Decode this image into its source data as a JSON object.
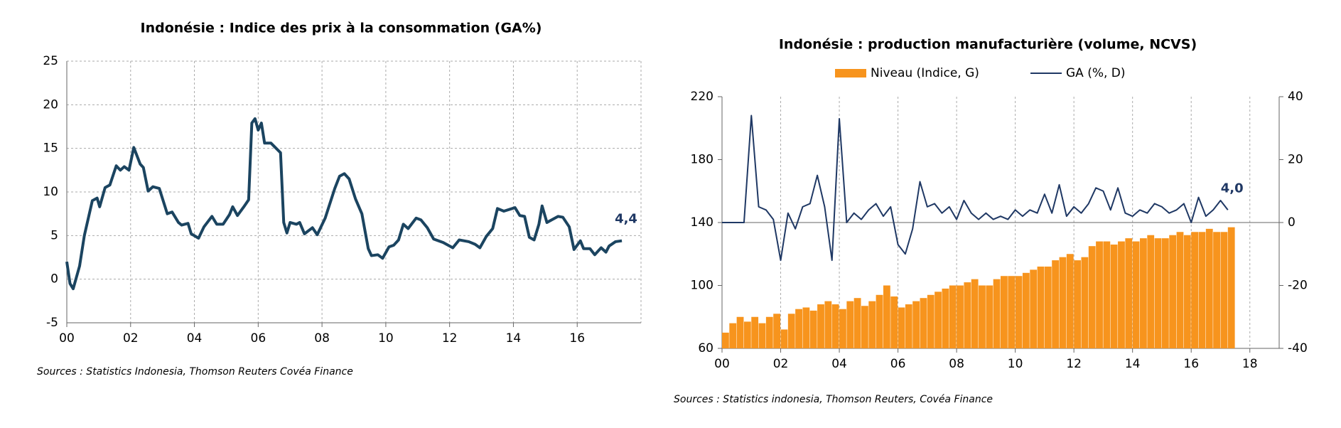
{
  "chart_data": [
    {
      "type": "line",
      "title": "Indonésie : Indice des prix à la consommation (GA%)",
      "source": "Sources :  Statistics Indonesia, Thomson Reuters Covéa Finance",
      "annotations": [
        "4,4"
      ],
      "grid": true,
      "xlim": [
        0,
        18
      ],
      "ylim": [
        -5,
        25
      ],
      "xticks": [
        {
          "value": 0,
          "label": "00"
        },
        {
          "value": 2,
          "label": "02"
        },
        {
          "value": 4,
          "label": "04"
        },
        {
          "value": 6,
          "label": "06"
        },
        {
          "value": 8,
          "label": "08"
        },
        {
          "value": 10,
          "label": "10"
        },
        {
          "value": 12,
          "label": "12"
        },
        {
          "value": 14,
          "label": "14"
        },
        {
          "value": 16,
          "label": "16"
        }
      ],
      "yticks": [
        -5,
        0,
        5,
        10,
        15,
        20,
        25
      ],
      "x": [
        0,
        0.1,
        0.2,
        0.4,
        0.55,
        0.8,
        0.95,
        1.03,
        1.2,
        1.35,
        1.55,
        1.68,
        1.8,
        1.95,
        2.1,
        2.3,
        2.4,
        2.55,
        2.7,
        2.9,
        3.15,
        3.3,
        3.5,
        3.6,
        3.8,
        3.9,
        4.13,
        4.3,
        4.55,
        4.7,
        4.9,
        5.1,
        5.2,
        5.35,
        5.55,
        5.7,
        5.8,
        5.9,
        6.0,
        6.1,
        6.2,
        6.4,
        6.7,
        6.8,
        6.9,
        7.0,
        7.2,
        7.3,
        7.45,
        7.7,
        7.85,
        8.1,
        8.4,
        8.55,
        8.7,
        8.85,
        9.05,
        9.25,
        9.45,
        9.55,
        9.75,
        9.9,
        10.1,
        10.25,
        10.4,
        10.55,
        10.7,
        10.95,
        11.1,
        11.3,
        11.5,
        11.8,
        12.1,
        12.3,
        12.6,
        12.8,
        12.95,
        13.15,
        13.35,
        13.5,
        13.7,
        14.05,
        14.2,
        14.35,
        14.5,
        14.65,
        14.8,
        14.9,
        15.05,
        15.2,
        15.4,
        15.55,
        15.75,
        15.9,
        16.1,
        16.2,
        16.4,
        16.55,
        16.75,
        16.9,
        17.0,
        17.2,
        17.4
      ],
      "series": [
        {
          "color": "#1b4460",
          "values": [
            2,
            -0.5,
            -1.1,
            1.5,
            5,
            9,
            9.3,
            8.3,
            10.5,
            10.8,
            13,
            12.5,
            12.9,
            12.5,
            15.1,
            13.2,
            12.8,
            10.1,
            10.6,
            10.4,
            7.5,
            7.7,
            6.5,
            6.2,
            6.4,
            5.2,
            4.7,
            6,
            7.2,
            6.3,
            6.3,
            7.4,
            8.3,
            7.3,
            8.3,
            9.1,
            17.9,
            18.4,
            17.1,
            17.9,
            15.6,
            15.6,
            14.5,
            6.5,
            5.3,
            6.5,
            6.3,
            6.5,
            5.2,
            5.9,
            5.1,
            7,
            10.4,
            11.8,
            12.1,
            11.5,
            9.2,
            7.5,
            3.5,
            2.7,
            2.8,
            2.4,
            3.7,
            3.9,
            4.5,
            6.3,
            5.8,
            7,
            6.8,
            5.9,
            4.6,
            4.2,
            3.6,
            4.5,
            4.3,
            4,
            3.6,
            4.9,
            5.8,
            8.1,
            7.8,
            8.2,
            7.3,
            7.2,
            4.8,
            4.5,
            6.3,
            8.4,
            6.5,
            6.8,
            7.2,
            7.1,
            6,
            3.4,
            4.4,
            3.5,
            3.5,
            2.8,
            3.6,
            3.1,
            3.8,
            4.3,
            4.4
          ]
        }
      ]
    },
    {
      "type": "bar_line",
      "title": "Indonésie : production manufacturière (volume, NCVS)",
      "source": "Sources :  Statistics indonesia, Thomson Reuters, Covéa Finance",
      "annotations": [
        "4,0"
      ],
      "grid": true,
      "xlim": [
        0,
        19
      ],
      "ylim": [
        60,
        220
      ],
      "y2lim": [
        -40,
        40
      ],
      "xticks": [
        {
          "value": 0,
          "label": "00"
        },
        {
          "value": 2,
          "label": "02"
        },
        {
          "value": 4,
          "label": "04"
        },
        {
          "value": 6,
          "label": "06"
        },
        {
          "value": 8,
          "label": "08"
        },
        {
          "value": 10,
          "label": "10"
        },
        {
          "value": 12,
          "label": "12"
        },
        {
          "value": 14,
          "label": "14"
        },
        {
          "value": 16,
          "label": "16"
        },
        {
          "value": 18,
          "label": "18"
        }
      ],
      "yticks": [
        60,
        100,
        140,
        180,
        220
      ],
      "y2ticks": [
        -40,
        -20,
        0,
        20,
        40
      ],
      "x": [
        0,
        0.25,
        0.5,
        0.75,
        1,
        1.25,
        1.5,
        1.75,
        2,
        2.25,
        2.5,
        2.75,
        3,
        3.25,
        3.5,
        3.75,
        4,
        4.25,
        4.5,
        4.75,
        5,
        5.25,
        5.5,
        5.75,
        6,
        6.25,
        6.5,
        6.75,
        7,
        7.25,
        7.5,
        7.75,
        8,
        8.25,
        8.5,
        8.75,
        9,
        9.25,
        9.5,
        9.75,
        10,
        10.25,
        10.5,
        10.75,
        11,
        11.25,
        11.5,
        11.75,
        12,
        12.25,
        12.5,
        12.75,
        13,
        13.25,
        13.5,
        13.75,
        14,
        14.25,
        14.5,
        14.75,
        15,
        15.25,
        15.5,
        15.75,
        16,
        16.25,
        16.5,
        16.75,
        17,
        17.25
      ],
      "series": [
        {
          "name": "Niveau (Indice, G)",
          "kind": "bar",
          "color": "#f7941d",
          "values": [
            70,
            76,
            80,
            77,
            80,
            76,
            80,
            82,
            72,
            82,
            85,
            86,
            84,
            88,
            90,
            88,
            85,
            90,
            92,
            87,
            90,
            94,
            100,
            93,
            86,
            88,
            90,
            92,
            94,
            96,
            98,
            100,
            100,
            102,
            104,
            100,
            100,
            104,
            106,
            106,
            106,
            108,
            110,
            112,
            112,
            116,
            118,
            120,
            116,
            118,
            125,
            128,
            128,
            126,
            128,
            130,
            128,
            130,
            132,
            130,
            130,
            132,
            134,
            132,
            134,
            134,
            136,
            134,
            134,
            137
          ]
        },
        {
          "name": "GA (%, D)",
          "kind": "line",
          "axis": "y2",
          "color": "#1f3864",
          "values": [
            0,
            0,
            0,
            0,
            34,
            5,
            4,
            1,
            -12,
            3,
            -2,
            5,
            6,
            15,
            5,
            -12,
            33,
            0,
            3,
            1,
            4,
            6,
            2,
            5,
            -7,
            -10,
            -2,
            13,
            5,
            6,
            3,
            5,
            1,
            7,
            3,
            1,
            3,
            1,
            2,
            1,
            4,
            2,
            4,
            3,
            9,
            3,
            12,
            2,
            5,
            3,
            6,
            11,
            10,
            4,
            11,
            3,
            2,
            4,
            3,
            6,
            5,
            3,
            4,
            6,
            0,
            8,
            2,
            4,
            7,
            4
          ]
        }
      ]
    }
  ]
}
